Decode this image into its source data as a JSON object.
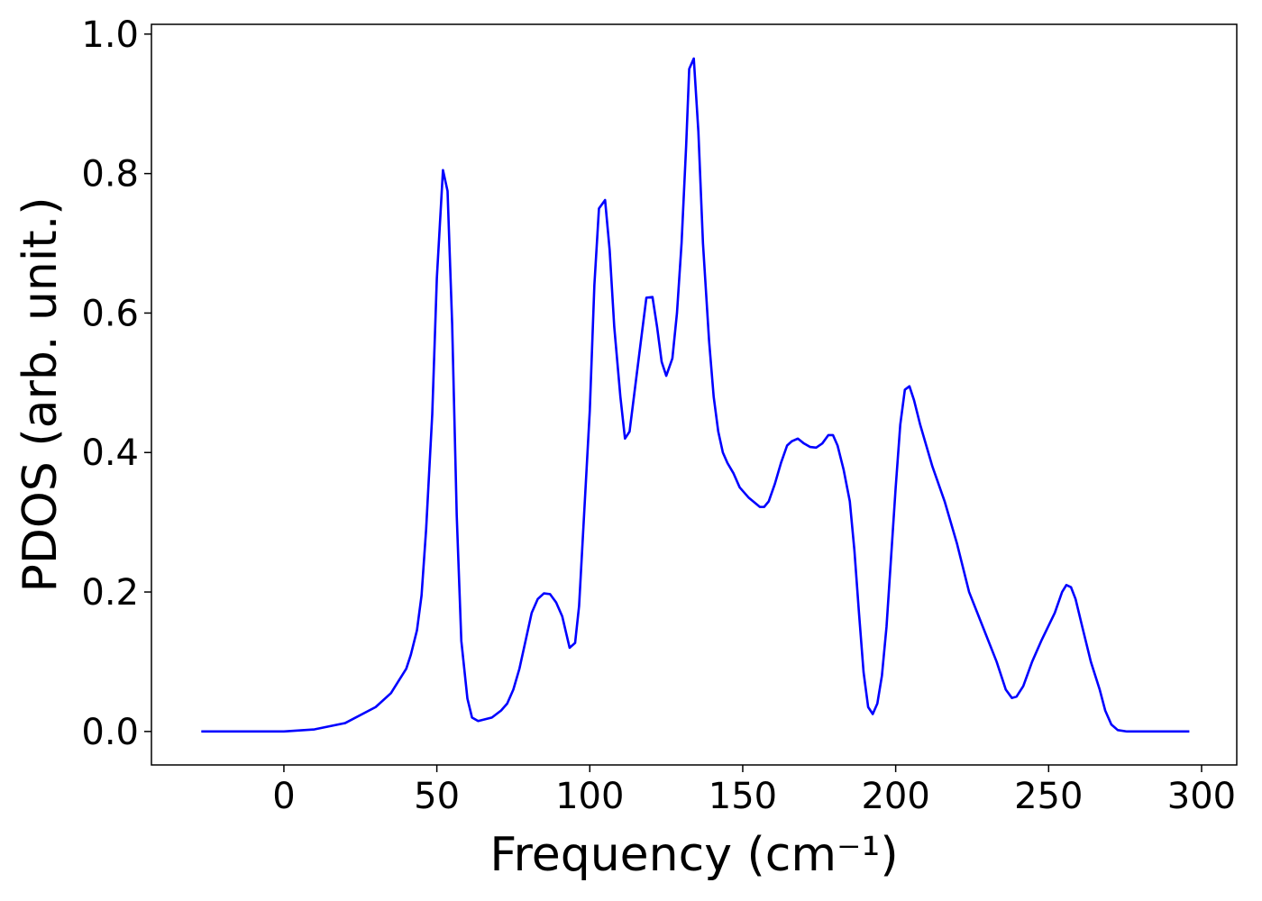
{
  "chart_data": {
    "type": "line",
    "xlabel": "Frequency (cm⁻¹)",
    "ylabel": "PDOS (arb. unit.)",
    "xlim": [
      -43.3,
      311.5
    ],
    "ylim": [
      -0.048,
      1.014
    ],
    "xticks": [
      0,
      50,
      100,
      150,
      200,
      250,
      300
    ],
    "yticks": [
      {
        "value": 0,
        "label": "0.0"
      },
      0.2,
      0.4,
      0.6,
      0.8,
      {
        "value": 1,
        "label": "1.0"
      }
    ],
    "grid": false,
    "series": [
      {
        "color": "#0000ff",
        "x": [
          -27,
          0,
          10,
          20,
          30,
          35,
          40,
          41.5,
          43.5,
          45,
          46.5,
          48.5,
          50,
          52,
          53.5,
          55,
          56.5,
          58,
          60,
          61.5,
          63.5,
          68,
          71,
          73,
          75,
          77,
          79,
          81,
          83,
          85,
          87,
          89,
          91,
          93.4,
          95.2,
          96.5,
          98,
          100,
          101.5,
          103,
          105,
          106.5,
          108,
          110,
          111.5,
          113,
          115,
          117,
          118.5,
          120.5,
          122,
          123.5,
          125,
          127,
          128.5,
          130,
          131.5,
          132.5,
          134,
          135.5,
          137,
          139,
          140.5,
          142,
          143.5,
          145,
          147,
          149,
          152,
          155.6,
          157,
          158.5,
          160.5,
          162.5,
          164.5,
          166,
          168,
          170,
          172,
          174,
          176,
          178,
          179.5,
          181,
          183,
          185,
          186.5,
          188,
          189.5,
          191,
          192.5,
          194,
          195.5,
          197,
          198.5,
          200,
          201.5,
          203,
          204.5,
          206,
          208,
          210,
          212,
          214,
          216,
          218,
          220,
          224,
          228.5,
          233,
          236,
          238,
          239.5,
          241.7,
          244.6,
          247.6,
          252,
          254.4,
          255.8,
          257.3,
          258.8,
          261,
          263.8,
          266.7,
          268.5,
          270.5,
          272.6,
          275.6,
          296
        ],
        "values": [
          0,
          0,
          0.003,
          0.012,
          0.035,
          0.055,
          0.09,
          0.11,
          0.145,
          0.195,
          0.29,
          0.455,
          0.65,
          0.805,
          0.775,
          0.585,
          0.31,
          0.13,
          0.047,
          0.02,
          0.015,
          0.02,
          0.03,
          0.04,
          0.06,
          0.09,
          0.13,
          0.17,
          0.19,
          0.198,
          0.197,
          0.185,
          0.165,
          0.12,
          0.127,
          0.18,
          0.3,
          0.46,
          0.64,
          0.75,
          0.762,
          0.69,
          0.58,
          0.48,
          0.42,
          0.43,
          0.5,
          0.57,
          0.622,
          0.623,
          0.58,
          0.53,
          0.51,
          0.535,
          0.6,
          0.7,
          0.84,
          0.95,
          0.965,
          0.86,
          0.7,
          0.56,
          0.48,
          0.43,
          0.4,
          0.385,
          0.37,
          0.35,
          0.335,
          0.322,
          0.322,
          0.33,
          0.355,
          0.385,
          0.41,
          0.416,
          0.42,
          0.413,
          0.408,
          0.407,
          0.413,
          0.425,
          0.425,
          0.41,
          0.375,
          0.33,
          0.26,
          0.17,
          0.085,
          0.035,
          0.025,
          0.04,
          0.08,
          0.15,
          0.25,
          0.35,
          0.44,
          0.49,
          0.495,
          0.475,
          0.44,
          0.41,
          0.38,
          0.355,
          0.33,
          0.3,
          0.27,
          0.2,
          0.15,
          0.1,
          0.06,
          0.048,
          0.05,
          0.065,
          0.1,
          0.13,
          0.17,
          0.2,
          0.21,
          0.207,
          0.19,
          0.15,
          0.1,
          0.06,
          0.03,
          0.01,
          0.002,
          0,
          0
        ]
      }
    ]
  }
}
